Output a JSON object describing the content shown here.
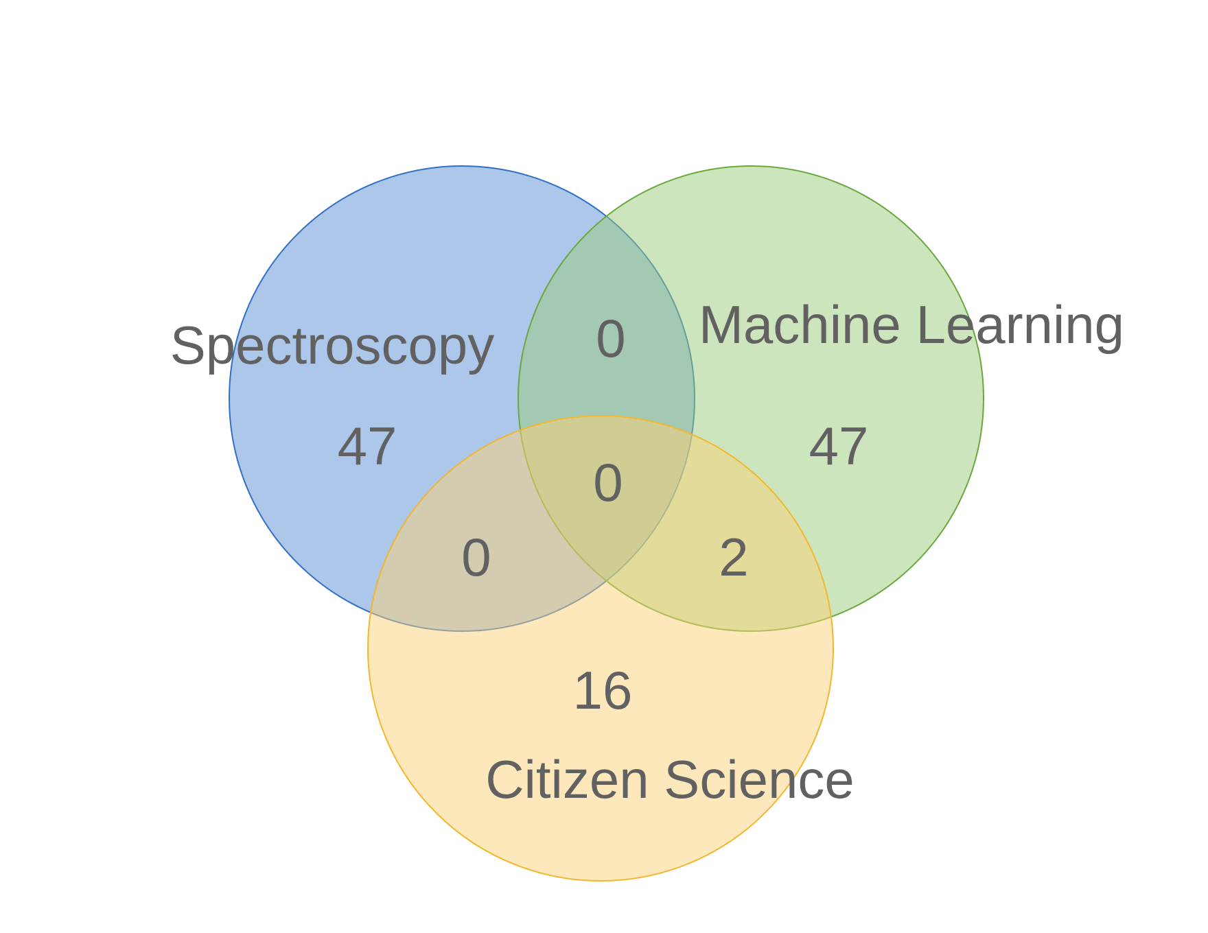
{
  "sets": [
    {
      "key": "A",
      "label": "Spectroscopy",
      "color": "#5B8FD6",
      "stroke": "#2F6FC4"
    },
    {
      "key": "B",
      "label": "Machine Learning",
      "color": "#9CCB7A",
      "stroke": "#6AA83E"
    },
    {
      "key": "C",
      "label": "Citizen Science",
      "color": "#FAD276",
      "stroke": "#F2B72E"
    }
  ],
  "regions": {
    "A_only": "47",
    "B_only": "47",
    "C_only": "16",
    "A_B": "0",
    "A_C": "0",
    "B_C": "2",
    "A_B_C": "0"
  },
  "text_color": "#616161"
}
